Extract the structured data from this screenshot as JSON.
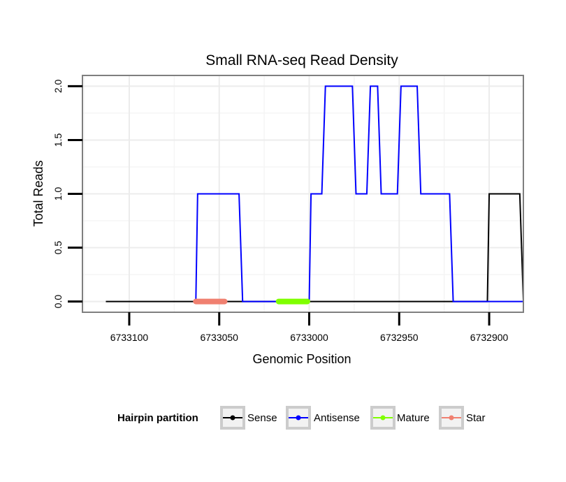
{
  "chart_data": {
    "type": "line",
    "title": "Small RNA-seq Read Density",
    "xlabel": "Genomic Position",
    "ylabel": "Total Reads",
    "x_reversed": true,
    "xlim": [
      6733126,
      6732881
    ],
    "ylim": [
      -0.1,
      2.1
    ],
    "x_ticks": [
      6733100,
      6733050,
      6733000,
      6732950,
      6732900
    ],
    "x_tick_labels": [
      "6733100",
      "6733050",
      "6733000",
      "6732950",
      "6732900"
    ],
    "y_ticks": [
      0.0,
      0.5,
      1.0,
      1.5,
      2.0
    ],
    "y_tick_labels": [
      "0.0",
      "0.5",
      "1.0",
      "1.5",
      "2.0"
    ],
    "grid": true,
    "series": [
      {
        "name": "Sense",
        "color": "#000000",
        "x": [
          6733113,
          6732901,
          6732900,
          6732883,
          6732881
        ],
        "y": [
          0,
          0,
          1,
          1,
          0
        ]
      },
      {
        "name": "Antisense",
        "color": "#0000ff",
        "x": [
          6733063,
          6733062,
          6733039,
          6733037,
          6733000,
          6732999,
          6732993,
          6732991,
          6732976,
          6732974,
          6732968,
          6732966,
          6732962,
          6732960,
          6732951,
          6732949,
          6732940,
          6732938,
          6732922,
          6732920,
          6732881
        ],
        "y": [
          0,
          1,
          1,
          0,
          0,
          1,
          1,
          2,
          2,
          1,
          1,
          2,
          2,
          1,
          1,
          2,
          2,
          1,
          1,
          0,
          0
        ]
      }
    ],
    "segments": [
      {
        "name": "Star",
        "color": "#f08070",
        "x": [
          6733063,
          6733047
        ],
        "y": 0
      },
      {
        "name": "Mature",
        "color": "#7fff00",
        "x": [
          6733017,
          6733001
        ],
        "y": 0
      }
    ],
    "legend": {
      "title": "Hairpin partition",
      "position": "bottom",
      "items": [
        {
          "label": "Sense",
          "color": "#000000"
        },
        {
          "label": "Antisense",
          "color": "#0000ff"
        },
        {
          "label": "Mature",
          "color": "#7fff00"
        },
        {
          "label": "Star",
          "color": "#f08070"
        }
      ]
    }
  }
}
